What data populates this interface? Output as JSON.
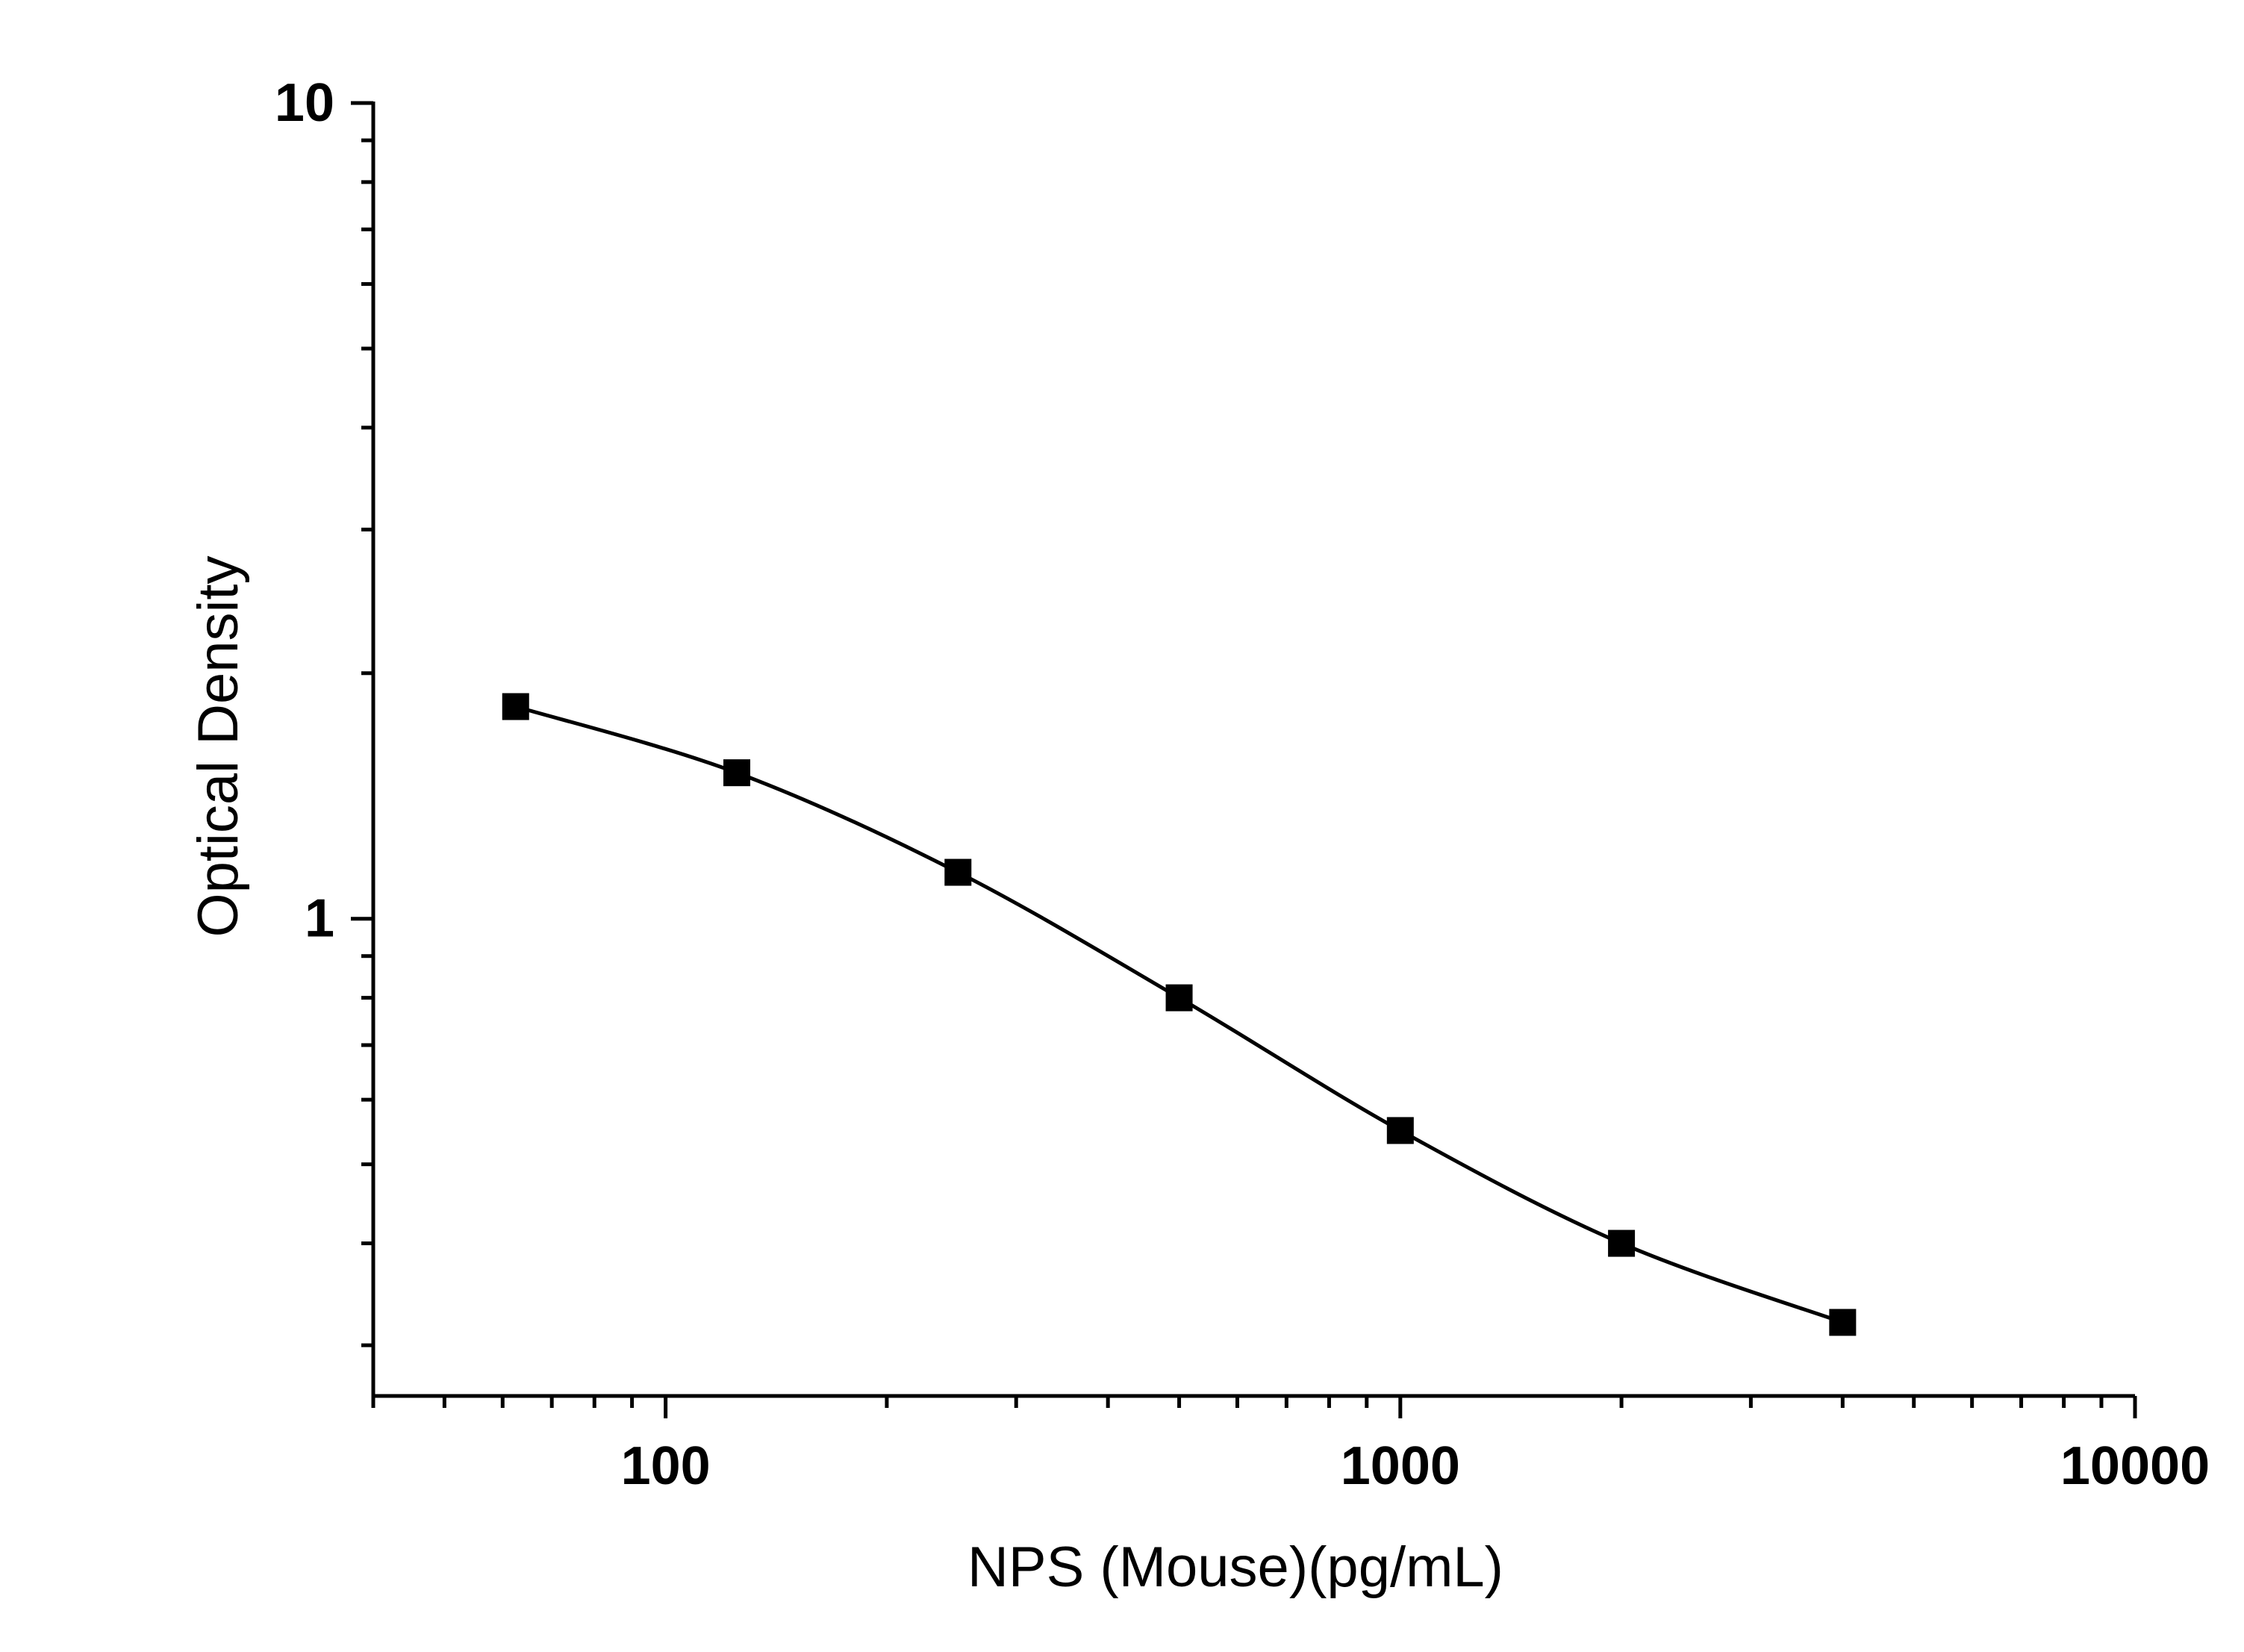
{
  "chart_data": {
    "type": "scatter",
    "title": "",
    "xlabel": "NPS (Mouse)(pg/mL)",
    "ylabel": "Optical Density",
    "x_scale": "log",
    "y_scale": "log",
    "xlim": [
      40,
      10000
    ],
    "ylim": [
      0.26,
      10
    ],
    "x_ticks": [
      {
        "value": 100,
        "label": "100"
      },
      {
        "value": 1000,
        "label": "1000"
      },
      {
        "value": 10000,
        "label": "10000"
      }
    ],
    "y_ticks": [
      {
        "value": 1,
        "label": "1"
      },
      {
        "value": 10,
        "label": "10"
      }
    ],
    "grid": false,
    "legend": "none",
    "series": [
      {
        "marker": "square",
        "fit": "smooth curve",
        "color": "#000000",
        "x": [
          62.5,
          125,
          250,
          500,
          1000,
          2000,
          4000
        ],
        "y": [
          1.82,
          1.51,
          1.14,
          0.8,
          0.55,
          0.4,
          0.32
        ]
      }
    ]
  }
}
